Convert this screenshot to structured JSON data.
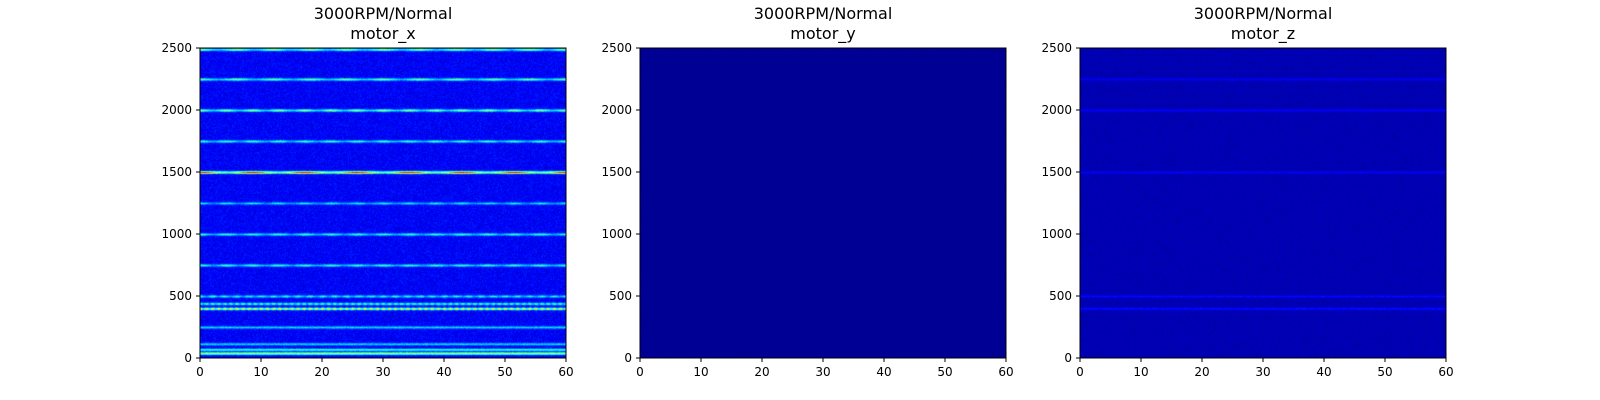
{
  "chart_data": [
    {
      "type": "heatmap",
      "title": "3000RPM/Normal",
      "subtitle": "motor_x",
      "xlabel": "",
      "ylabel": "",
      "xlim": [
        0,
        60
      ],
      "ylim": [
        0,
        2500
      ],
      "xticks": [
        "0",
        "10",
        "20",
        "30",
        "40",
        "50",
        "60"
      ],
      "yticks": [
        "0",
        "500",
        "1000",
        "1500",
        "2000",
        "2500"
      ],
      "colormap": "jet",
      "background_intensity": 0.12,
      "bands": [
        {
          "y": 40,
          "intensity": 0.45
        },
        {
          "y": 70,
          "intensity": 0.3
        },
        {
          "y": 115,
          "intensity": 0.22
        },
        {
          "y": 250,
          "intensity": 0.22
        },
        {
          "y": 400,
          "intensity": 0.55,
          "pulses": 60
        },
        {
          "y": 440,
          "intensity": 0.35,
          "pulses": 60
        },
        {
          "y": 500,
          "intensity": 0.3,
          "pulses": 30
        },
        {
          "y": 750,
          "intensity": 0.32,
          "pulses": 14
        },
        {
          "y": 1000,
          "intensity": 0.32,
          "pulses": 14
        },
        {
          "y": 1250,
          "intensity": 0.26,
          "pulses": 14
        },
        {
          "y": 1500,
          "intensity": 0.72,
          "pulses": 7
        },
        {
          "y": 1750,
          "intensity": 0.33,
          "pulses": 14
        },
        {
          "y": 2000,
          "intensity": 0.42,
          "pulses": 14
        },
        {
          "y": 2250,
          "intensity": 0.38,
          "pulses": 10
        },
        {
          "y": 2490,
          "intensity": 0.42,
          "pulses": 10
        }
      ]
    },
    {
      "type": "heatmap",
      "title": "3000RPM/Normal",
      "subtitle": "motor_y",
      "xlabel": "",
      "ylabel": "",
      "xlim": [
        0,
        60
      ],
      "ylim": [
        0,
        2500
      ],
      "xticks": [
        "0",
        "10",
        "20",
        "30",
        "40",
        "50",
        "60"
      ],
      "yticks": [
        "0",
        "500",
        "1000",
        "1500",
        "2000",
        "2500"
      ],
      "colormap": "jet",
      "background_intensity": 0.02,
      "bands": []
    },
    {
      "type": "heatmap",
      "title": "3000RPM/Normal",
      "subtitle": "motor_z",
      "xlabel": "",
      "ylabel": "",
      "xlim": [
        0,
        60
      ],
      "ylim": [
        0,
        2500
      ],
      "xticks": [
        "0",
        "10",
        "20",
        "30",
        "40",
        "50",
        "60"
      ],
      "yticks": [
        "0",
        "500",
        "1000",
        "1500",
        "2000",
        "2500"
      ],
      "colormap": "jet",
      "background_intensity": 0.05,
      "bands": [
        {
          "y": 400,
          "intensity": 0.09
        },
        {
          "y": 500,
          "intensity": 0.08
        },
        {
          "y": 1500,
          "intensity": 0.07
        },
        {
          "y": 2000,
          "intensity": 0.07
        },
        {
          "y": 2250,
          "intensity": 0.06
        }
      ]
    }
  ]
}
